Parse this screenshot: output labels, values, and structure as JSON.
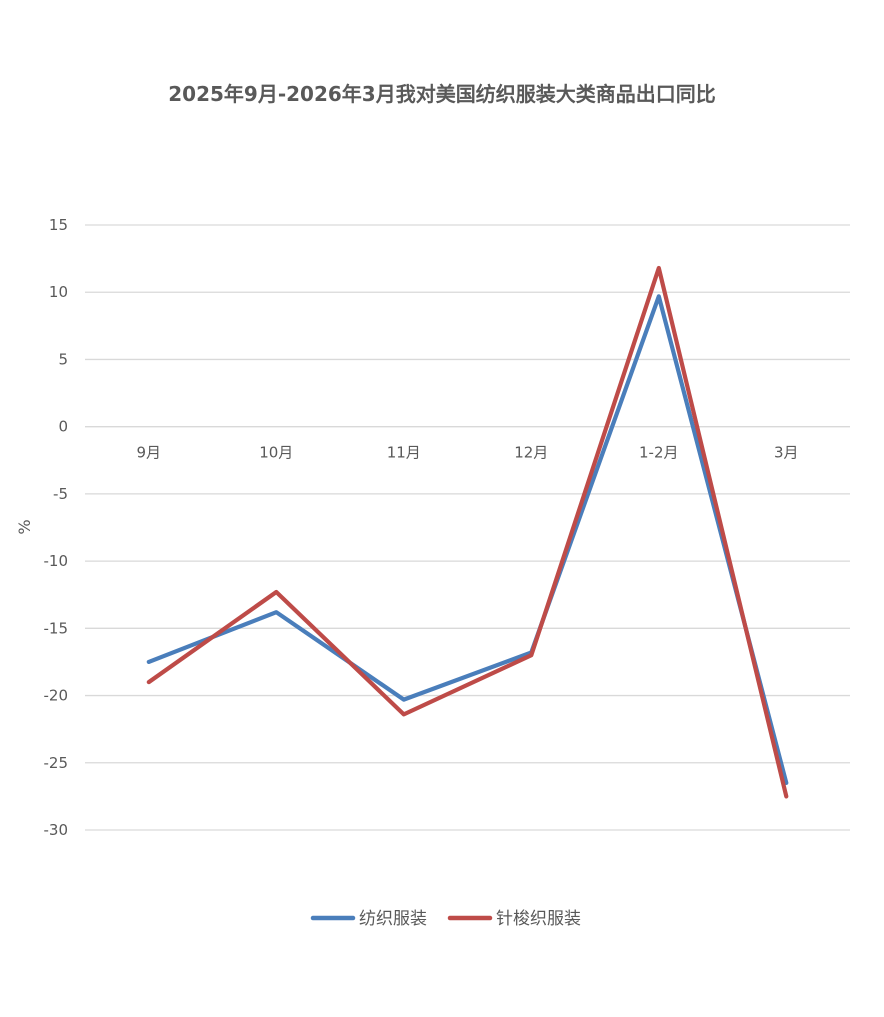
{
  "chart_data": {
    "type": "line",
    "title": "2025年9月-2026年3月我对美国纺织服装大类商品出口同比",
    "xlabel": "",
    "ylabel": "%",
    "ylim": [
      -30,
      15
    ],
    "yticks": [
      15,
      10,
      5,
      0,
      -5,
      -10,
      -15,
      -20,
      -25,
      -30
    ],
    "categories": [
      "9月",
      "10月",
      "11月",
      "12月",
      "1-2月",
      "3月"
    ],
    "grid": true,
    "legend": "bottom",
    "series": [
      {
        "name": "纺织服装",
        "color": "#4a7ebb",
        "values": [
          -17.5,
          -13.8,
          -20.3,
          -16.8,
          9.7,
          -26.5
        ]
      },
      {
        "name": "针梭织服装",
        "color": "#be4b48",
        "values": [
          -19.0,
          -12.3,
          -21.4,
          -17.0,
          11.8,
          -27.5
        ]
      }
    ]
  }
}
